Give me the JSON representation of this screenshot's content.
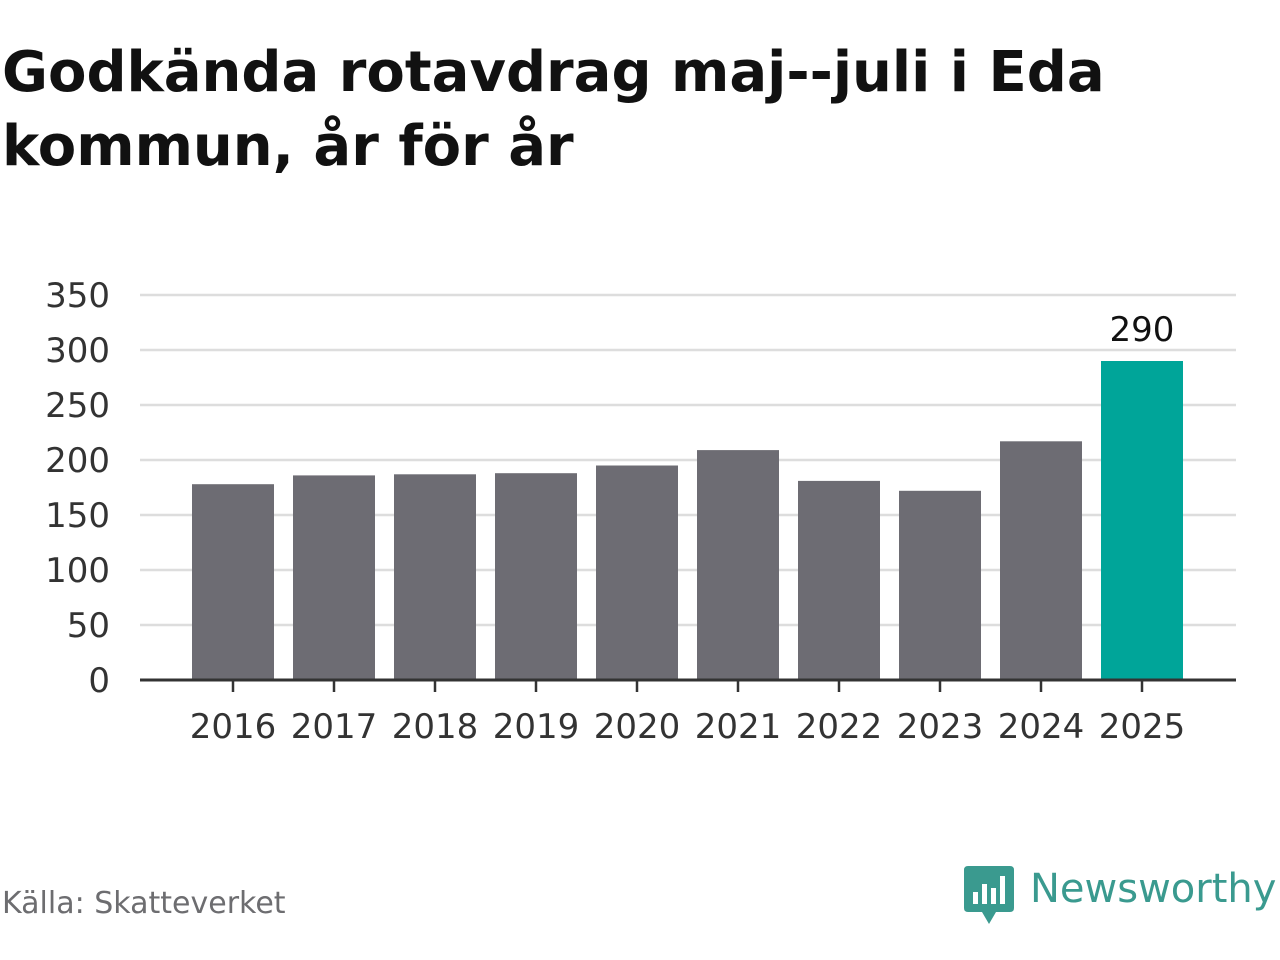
{
  "title": "Godkända rotavdrag maj--juli i Eda kommun, år för år",
  "source": "Källa: Skatteverket",
  "brand": {
    "name": "Newsworthy",
    "icon": "newsworthy-logo-icon",
    "color": "#3a9a8f"
  },
  "colors": {
    "bar": "#6d6c73",
    "highlight": "#00a599",
    "grid": "#dddddd",
    "axis": "#333333",
    "text": "#333333"
  },
  "chart_data": {
    "type": "bar",
    "title": "Godkända rotavdrag maj--juli i Eda kommun, år för år",
    "xlabel": "",
    "ylabel": "",
    "categories": [
      "2016",
      "2017",
      "2018",
      "2019",
      "2020",
      "2021",
      "2022",
      "2023",
      "2024",
      "2025"
    ],
    "values": [
      178,
      186,
      187,
      188,
      195,
      209,
      181,
      172,
      217,
      290
    ],
    "highlight_index": 9,
    "data_labels": [
      {
        "index": 9,
        "text": "290"
      }
    ],
    "ylim": [
      0,
      350
    ],
    "yticks": [
      "0",
      "50",
      "100",
      "150",
      "200",
      "250",
      "300",
      "350"
    ],
    "grid": true,
    "legend": "none"
  }
}
